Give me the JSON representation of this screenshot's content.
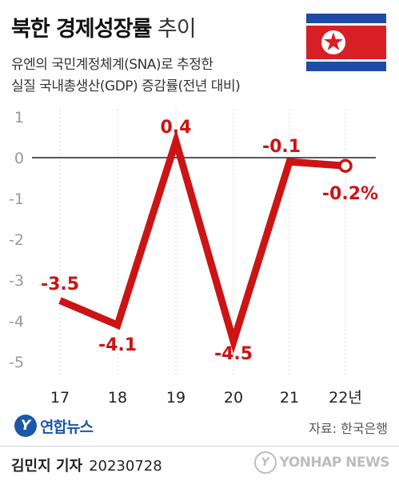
{
  "header": {
    "title_bold": "북한 경제성장률",
    "title_light": "추이",
    "subtitle_line1": "유엔의 국민계정체계(SNA)로 추정한",
    "subtitle_line2": "실질 국내총생산(GDP) 증감률(전년 대비)"
  },
  "colors": {
    "line": "#cc1414",
    "flag_blue": "#1f4aa8",
    "flag_red": "#d81f26"
  },
  "chart_data": {
    "type": "line",
    "x": [
      "17",
      "18",
      "19",
      "20",
      "21",
      "22년"
    ],
    "series": [
      {
        "values": [
          -3.5,
          -4.1,
          0.4,
          -4.5,
          -0.1,
          -0.2
        ]
      }
    ],
    "data_labels": [
      "-3.5",
      "-4.1",
      "0.4",
      "-4.5",
      "-0.1",
      "-0.2%"
    ],
    "yticks": [
      "1",
      "0",
      "-1",
      "-2",
      "-3",
      "-4",
      "-5"
    ],
    "ytick_values": [
      1,
      0,
      -1,
      -2,
      -3,
      -4,
      -5
    ],
    "ylim": [
      -5,
      1
    ],
    "zero_line": true,
    "grid": true,
    "last_point_marker": "hollow-circle"
  },
  "footer": {
    "logo_mark": "Y",
    "logo_text": "연합뉴스",
    "source": "자료: 한국은행",
    "byline_name": "김민지 기자",
    "byline_date": "20230728",
    "watermark_mark": "Y",
    "watermark_text": "YONHAP NEWS"
  }
}
